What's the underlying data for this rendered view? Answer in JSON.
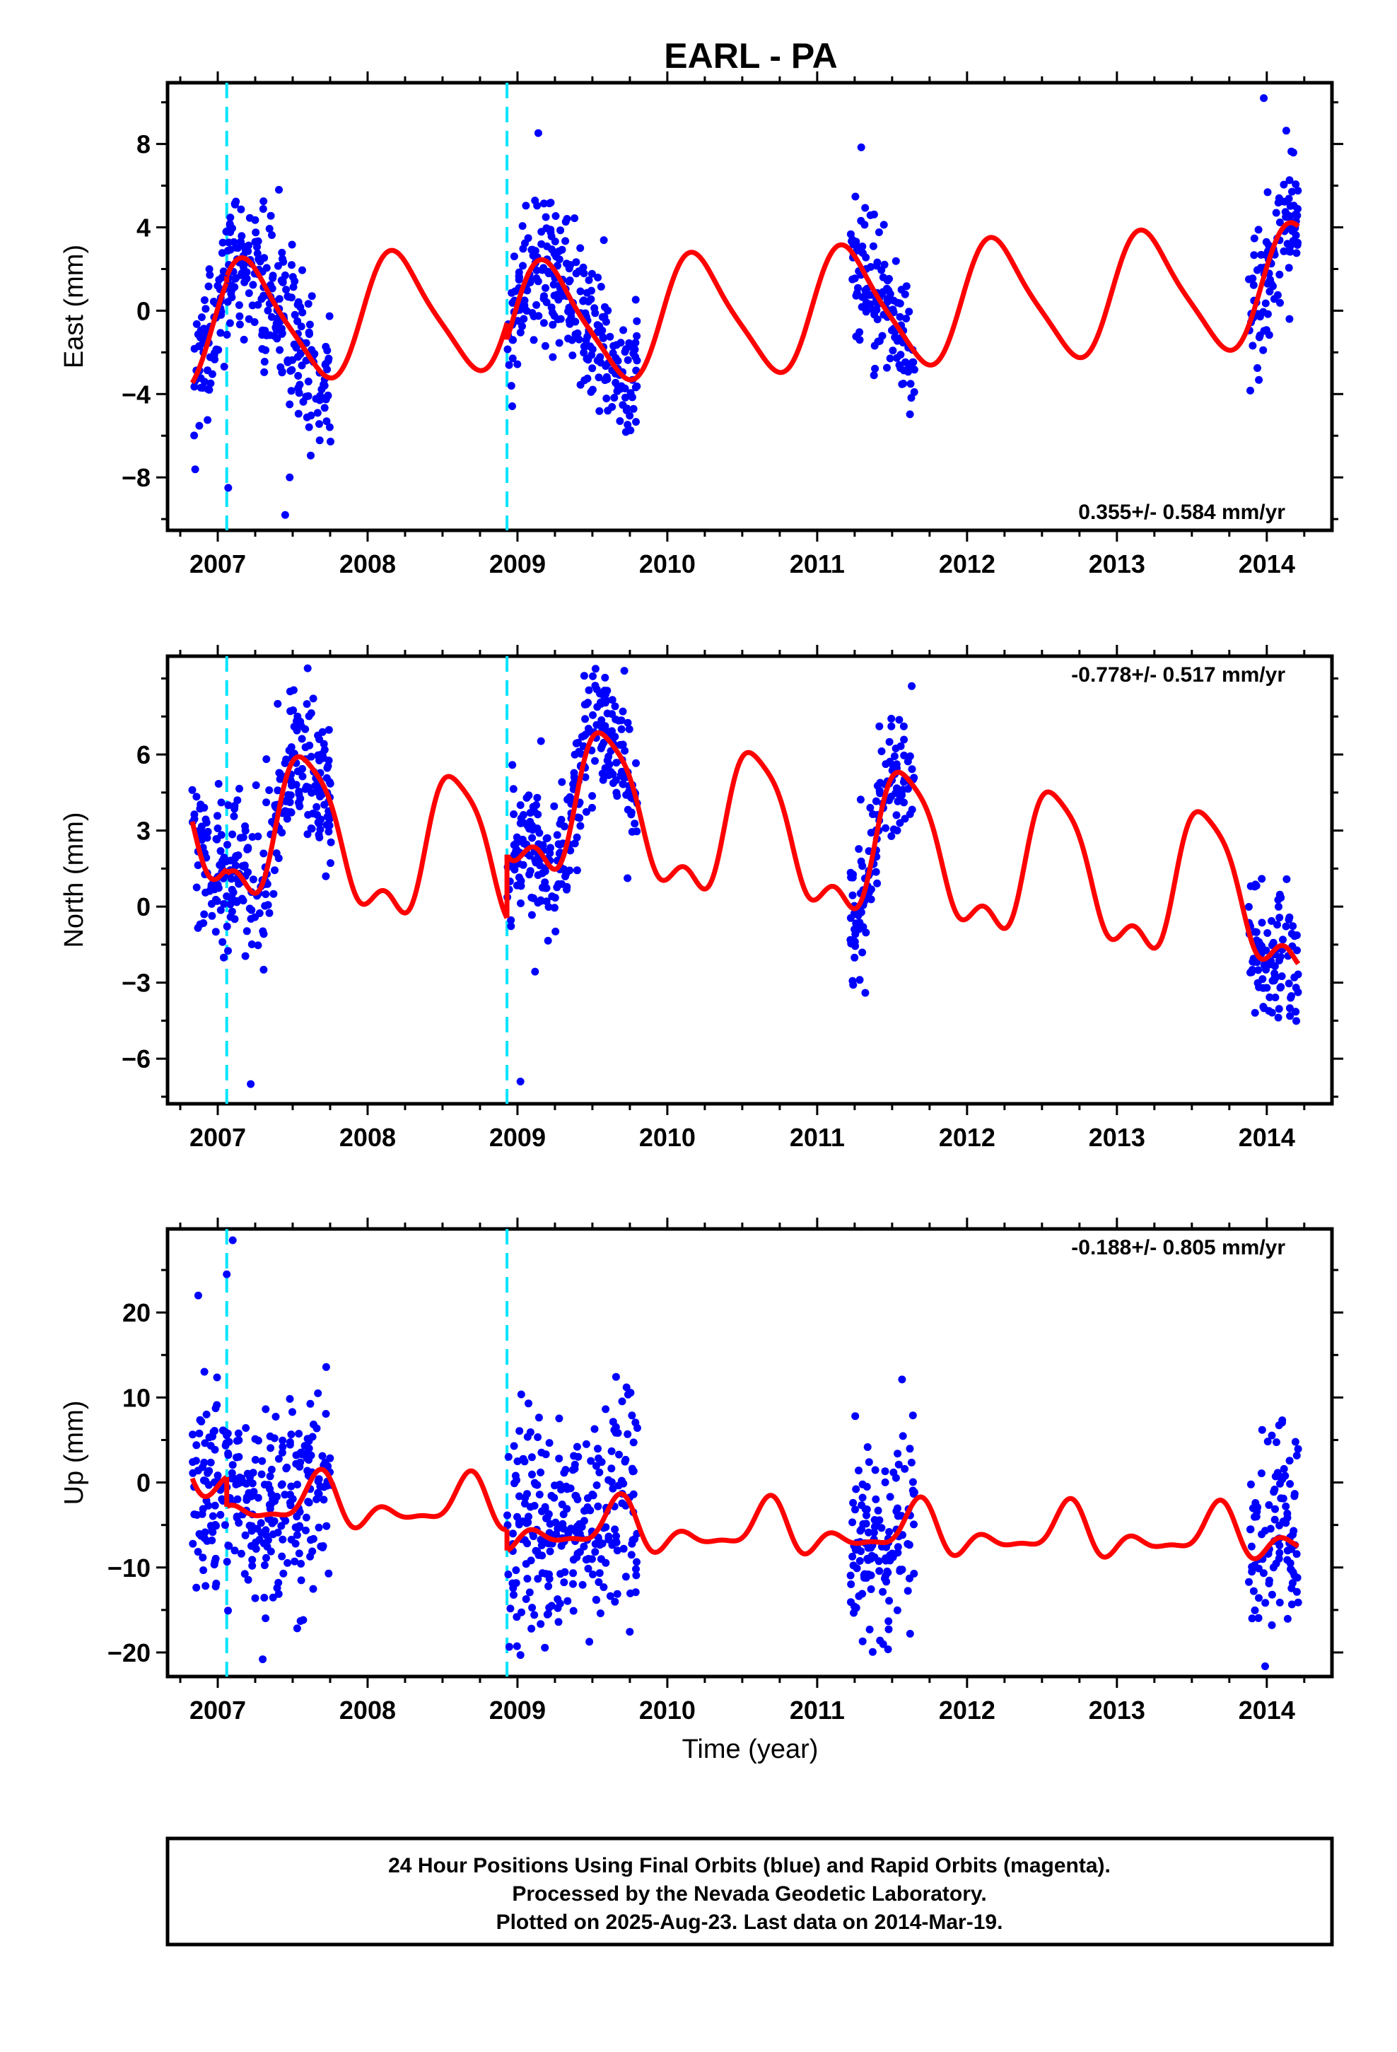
{
  "figure": {
    "title": "EARL - PA",
    "xlabel": "Time (year)",
    "caption": [
      "24 Hour Positions Using Final Orbits (blue) and Rapid Orbits (magenta).",
      "Processed by the Nevada Geodetic Laboratory.",
      "Plotted on 2025-Aug-23. Last data on 2014-Mar-19."
    ]
  },
  "colors": {
    "final_orbits": "#0000ff",
    "fit_curve": "#ff0000",
    "equipment_change": "#00e5ff",
    "frame": "#000000"
  },
  "chart_data": [
    {
      "type": "scatter",
      "name": "east",
      "ylabel": "East (mm)",
      "rate_label": "0.355+/- 0.584 mm/yr",
      "rate_position": "bottom-right",
      "xlim": [
        2006.75,
        2014.35
      ],
      "ylim": [
        -10.2,
        10.6
      ],
      "xticks": [
        2007,
        2008,
        2009,
        2010,
        2011,
        2012,
        2013,
        2014
      ],
      "yticks": [
        -8,
        -4,
        0,
        4,
        8
      ],
      "grid": false,
      "breaks": [
        2007.06,
        2008.93
      ],
      "segments": [
        [
          2006.83,
          2007.76
        ],
        [
          2008.93,
          2009.8
        ],
        [
          2011.22,
          2011.65
        ],
        [
          2013.88,
          2014.21
        ]
      ],
      "fit": {
        "offset": 0.35,
        "slope": 0.355,
        "t0": 2010.5,
        "annual": [
          2.7,
          0.8
        ],
        "semiannual": [
          0.5,
          0.2
        ],
        "steps": [
          {
            "t": 2007.06,
            "d": 0.3
          },
          {
            "t": 2008.93,
            "d": -0.8
          }
        ]
      },
      "scatter": {
        "sigma": 1.8,
        "jumps": [
          {
            "t": 2009.9,
            "d": 0.0
          }
        ],
        "outliers": [
          [
            2007.07,
            -8.5
          ],
          [
            2007.45,
            -9.8
          ],
          [
            2007.48,
            -8.0
          ],
          [
            2013.98,
            10.2
          ]
        ]
      }
    },
    {
      "type": "scatter",
      "name": "north",
      "ylabel": "North (mm)",
      "rate_label": "-0.778+/- 0.517 mm/yr",
      "rate_position": "top-right",
      "xlim": [
        2006.75,
        2014.35
      ],
      "ylim": [
        -7.5,
        9.6
      ],
      "xticks": [
        2007,
        2008,
        2009,
        2010,
        2011,
        2012,
        2013,
        2014
      ],
      "yticks": [
        -6,
        -3,
        0,
        3,
        6
      ],
      "grid": false,
      "breaks": [
        2007.06,
        2008.93
      ],
      "segments": [
        [
          2006.83,
          2007.76
        ],
        [
          2008.93,
          2009.8
        ],
        [
          2011.22,
          2011.65
        ],
        [
          2013.88,
          2014.21
        ]
      ],
      "fit": {
        "offset": 0.6,
        "slope": -0.778,
        "t0": 2010.5,
        "annual": [
          -1.6,
          -2.3
        ],
        "semiannual": [
          0.6,
          0.4
        ],
        "h3": [
          0.4,
          -0.3
        ],
        "steps": [
          {
            "t": 2007.06,
            "d": -0.2
          },
          {
            "t": 2008.93,
            "d": 2.5
          }
        ]
      },
      "scatter": {
        "sigma": 1.4,
        "outliers": [
          [
            2007.6,
            9.4
          ],
          [
            2007.4,
            8.0
          ],
          [
            2009.55,
            8.4
          ],
          [
            2007.22,
            -7.0
          ],
          [
            2009.02,
            -6.9
          ]
        ]
      }
    },
    {
      "type": "scatter",
      "name": "up",
      "ylabel": "Up (mm)",
      "rate_label": "-0.188+/- 0.805 mm/yr",
      "rate_position": "top-right",
      "xlim": [
        2006.75,
        2014.35
      ],
      "ylim": [
        -22,
        29
      ],
      "xticks": [
        2007,
        2008,
        2009,
        2010,
        2011,
        2012,
        2013,
        2014
      ],
      "yticks": [
        -20,
        -10,
        0,
        10,
        20
      ],
      "grid": false,
      "breaks": [
        2007.06,
        2008.93
      ],
      "segments": [
        [
          2006.83,
          2007.76
        ],
        [
          2008.93,
          2009.8
        ],
        [
          2011.22,
          2011.65
        ],
        [
          2013.88,
          2014.21
        ]
      ],
      "fit": {
        "offset": 0.2,
        "slope": -0.188,
        "t0": 2010.5,
        "annual": [
          -1.5,
          -0.9
        ],
        "semiannual": [
          1.5,
          -1.0
        ],
        "h3": [
          0.7,
          0.6
        ],
        "steps": [
          {
            "t": 2007.06,
            "d": -3.5
          },
          {
            "t": 2008.93,
            "d": -2.5
          }
        ]
      },
      "scatter": {
        "sigma": 6.0,
        "outliers": [
          [
            2007.1,
            28.5
          ],
          [
            2007.06,
            24.5
          ],
          [
            2006.87,
            22.0
          ],
          [
            2009.02,
            -20.3
          ],
          [
            2007.3,
            -20.8
          ],
          [
            2011.62,
            -17.8
          ],
          [
            2011.35,
            -17.3
          ]
        ]
      }
    }
  ]
}
